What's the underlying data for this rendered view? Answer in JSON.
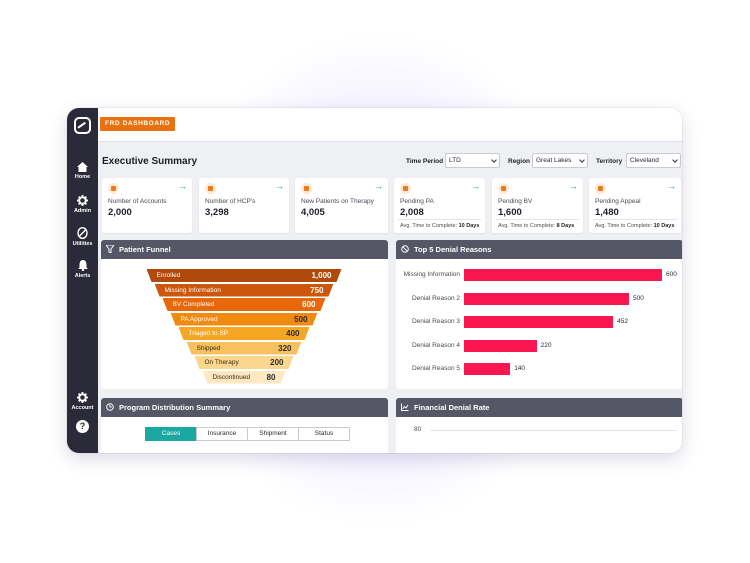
{
  "brand": {
    "accent": "#e9720e",
    "teal": "#1aa8a3",
    "bar_color": "#fa1650",
    "sidebar_bg": "#2a2a38",
    "panel_header_bg": "#565766"
  },
  "app": {
    "tab_label": "FRD DASHBOARD"
  },
  "sidebar": {
    "items": [
      {
        "label": "Home",
        "icon": "home-icon"
      },
      {
        "label": "Admin",
        "icon": "gear-icon"
      },
      {
        "label": "Utilities",
        "icon": "link-icon"
      },
      {
        "label": "Alerts",
        "icon": "bell-icon"
      }
    ],
    "account": {
      "label": "Account",
      "icon": "gear-icon"
    },
    "help": {
      "label": "?",
      "icon": "help-icon"
    }
  },
  "header": {
    "title": "Executive Summary",
    "filters": [
      {
        "label": "Time Period",
        "value": "LTD"
      },
      {
        "label": "Region",
        "value": "Great Lakes"
      },
      {
        "label": "Territory",
        "value": "Cleveland"
      }
    ]
  },
  "kpis": [
    {
      "label": "Number of Accounts",
      "value": "2,000",
      "icon": "accounts-icon"
    },
    {
      "label": "Number of HCP's",
      "value": "3,298",
      "icon": "hcp-icon"
    },
    {
      "label": "New Patients on Therapy",
      "value": "4,005",
      "icon": "patients-icon"
    },
    {
      "label": "Pending PA",
      "value": "2,008",
      "icon": "shield-icon",
      "sub_label": "Avg. Time to Complete:",
      "sub_value": "10 Days"
    },
    {
      "label": "Pending BV",
      "value": "1,600",
      "icon": "document-icon",
      "sub_label": "Avg. Time to Complete:",
      "sub_value": "8 Days"
    },
    {
      "label": "Pending Appeal",
      "value": "1,480",
      "icon": "appeal-icon",
      "sub_label": "Avg. Time to Complete:",
      "sub_value": "10 Days"
    }
  ],
  "funnel": {
    "title": "Patient Funnel",
    "steps": [
      {
        "label": "Enrolled",
        "value": "1,000",
        "color": "#b04a0a"
      },
      {
        "label": "Missing Information",
        "value": "750",
        "color": "#cc5609"
      },
      {
        "label": "BV Completed",
        "value": "600",
        "color": "#e6680a"
      },
      {
        "label": "PA Approved",
        "value": "500",
        "color": "#f08a10"
      },
      {
        "label": "Triaged to SP",
        "value": "400",
        "color": "#f5a623"
      },
      {
        "label": "Shipped",
        "value": "320",
        "color": "#f8c160"
      },
      {
        "label": "On Therapy",
        "value": "200",
        "color": "#fbd68f"
      },
      {
        "label": "Discontinued",
        "value": "80",
        "color": "#fde8c2"
      }
    ]
  },
  "denial": {
    "title": "Top 5 Denial Reasons",
    "max": 600,
    "bars": [
      {
        "label": "Missing Information",
        "value": 600
      },
      {
        "label": "Denial Reason 2",
        "value": 500
      },
      {
        "label": "Denial Reason 3",
        "value": 452
      },
      {
        "label": "Denial Reason 4",
        "value": 220
      },
      {
        "label": "Denial Reason 5",
        "value": 140
      }
    ]
  },
  "program": {
    "title": "Program Distribution Summary",
    "tabs": [
      "Cases",
      "Insurance",
      "Shipment",
      "Status"
    ],
    "active_tab": "Cases"
  },
  "financial": {
    "title": "Financial Denial Rate",
    "y_tick_top": "80"
  }
}
